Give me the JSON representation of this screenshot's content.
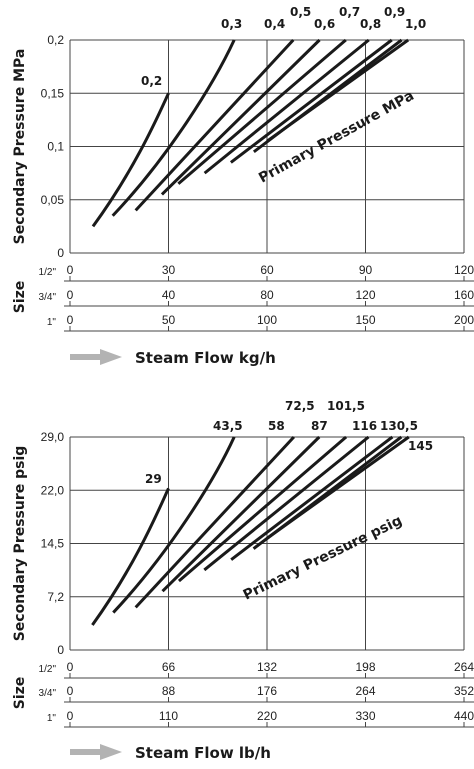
{
  "charts": [
    {
      "chart_data": {
        "type": "line",
        "ylabel": "Secondary Pressure MPa",
        "xlabel": "Steam Flow kg/h",
        "yticks": [
          "0",
          "0,05",
          "0,1",
          "0,15",
          "0,2"
        ],
        "ylim": [
          0,
          0.2
        ],
        "size_label": "Size",
        "sizes": [
          {
            "label": "1/2\"",
            "ticks": [
              "0",
              "30",
              "60",
              "90",
              "120"
            ]
          },
          {
            "label": "3/4\"",
            "ticks": [
              "0",
              "40",
              "80",
              "120",
              "160"
            ]
          },
          {
            "label": "1\"",
            "ticks": [
              "0",
              "50",
              "100",
              "150",
              "200"
            ]
          }
        ],
        "xlim": [
          0,
          120
        ],
        "series_annotation": "Primary Pressure MPa",
        "series": [
          {
            "name": "0,2",
            "kind": "curve",
            "points": [
              [
                7,
                0.025
              ],
              [
                20,
                0.08
              ],
              [
                27,
                0.13
              ],
              [
                30,
                0.15
              ]
            ]
          },
          {
            "name": "0,3",
            "kind": "curve",
            "points": [
              [
                13,
                0.035
              ],
              [
                30,
                0.09
              ],
              [
                44,
                0.16
              ],
              [
                50,
                0.2
              ]
            ]
          },
          {
            "name": "0,4",
            "kind": "line",
            "points": [
              [
                20,
                0.04
              ],
              [
                68,
                0.2
              ]
            ]
          },
          {
            "name": "0,5",
            "kind": "line",
            "points": [
              [
                28,
                0.055
              ],
              [
                76,
                0.2
              ]
            ]
          },
          {
            "name": "0,6",
            "kind": "line",
            "points": [
              [
                33,
                0.065
              ],
              [
                84,
                0.2
              ]
            ]
          },
          {
            "name": "0,7",
            "kind": "line",
            "points": [
              [
                41,
                0.075
              ],
              [
                91,
                0.2
              ]
            ]
          },
          {
            "name": "0,8",
            "kind": "line",
            "points": [
              [
                49,
                0.085
              ],
              [
                98,
                0.2
              ]
            ]
          },
          {
            "name": "0,9",
            "kind": "line",
            "points": [
              [
                56,
                0.095
              ],
              [
                101,
                0.2
              ]
            ]
          },
          {
            "name": "1,0",
            "kind": "line",
            "points": [
              [
                60,
                0.105
              ],
              [
                103,
                0.2
              ]
            ]
          }
        ]
      }
    },
    {
      "chart_data": {
        "type": "line",
        "ylabel": "Secondary Pressure psig",
        "xlabel": "Steam Flow lb/h",
        "yticks": [
          "0",
          "7,2",
          "14,5",
          "22,0",
          "29,0"
        ],
        "ylim": [
          0,
          29
        ],
        "size_label": "Size",
        "sizes": [
          {
            "label": "1/2\"",
            "ticks": [
              "0",
              "66",
              "132",
              "198",
              "264"
            ]
          },
          {
            "label": "3/4\"",
            "ticks": [
              "0",
              "88",
              "176",
              "264",
              "352"
            ]
          },
          {
            "label": "1\"",
            "ticks": [
              "0",
              "110",
              "220",
              "330",
              "440"
            ]
          }
        ],
        "xlim": [
          0,
          264
        ],
        "series_annotation": "Primary Pressure psig",
        "series": [
          {
            "name": "29",
            "kind": "curve",
            "points": [
              [
                15,
                3.4
              ],
              [
                44,
                11.6
              ],
              [
                59,
                18.9
              ],
              [
                66,
                22
              ]
            ]
          },
          {
            "name": "43,5",
            "kind": "curve",
            "points": [
              [
                29,
                5.1
              ],
              [
                66,
                13.1
              ],
              [
                97,
                23.2
              ],
              [
                110,
                29
              ]
            ]
          },
          {
            "name": "58",
            "kind": "line",
            "points": [
              [
                44,
                5.8
              ],
              [
                150,
                29
              ]
            ]
          },
          {
            "name": "72,5",
            "kind": "line",
            "points": [
              [
                62,
                8
              ],
              [
                167,
                29
              ]
            ]
          },
          {
            "name": "87",
            "kind": "line",
            "points": [
              [
                73,
                9.4
              ],
              [
                185,
                29
              ]
            ]
          },
          {
            "name": "101,5",
            "kind": "line",
            "points": [
              [
                90,
                10.9
              ],
              [
                200,
                29
              ]
            ]
          },
          {
            "name": "116",
            "kind": "line",
            "points": [
              [
                108,
                12.3
              ],
              [
                216,
                29
              ]
            ]
          },
          {
            "name": "130,5",
            "kind": "line",
            "points": [
              [
                123,
                13.8
              ],
              [
                222,
                29
              ]
            ]
          },
          {
            "name": "145",
            "kind": "line",
            "points": [
              [
                132,
                15.2
              ],
              [
                227,
                29
              ]
            ]
          }
        ]
      }
    }
  ],
  "colors": {
    "line": "#1a1a1a",
    "grid": "#444444",
    "arrow": "#b3b3b3"
  }
}
